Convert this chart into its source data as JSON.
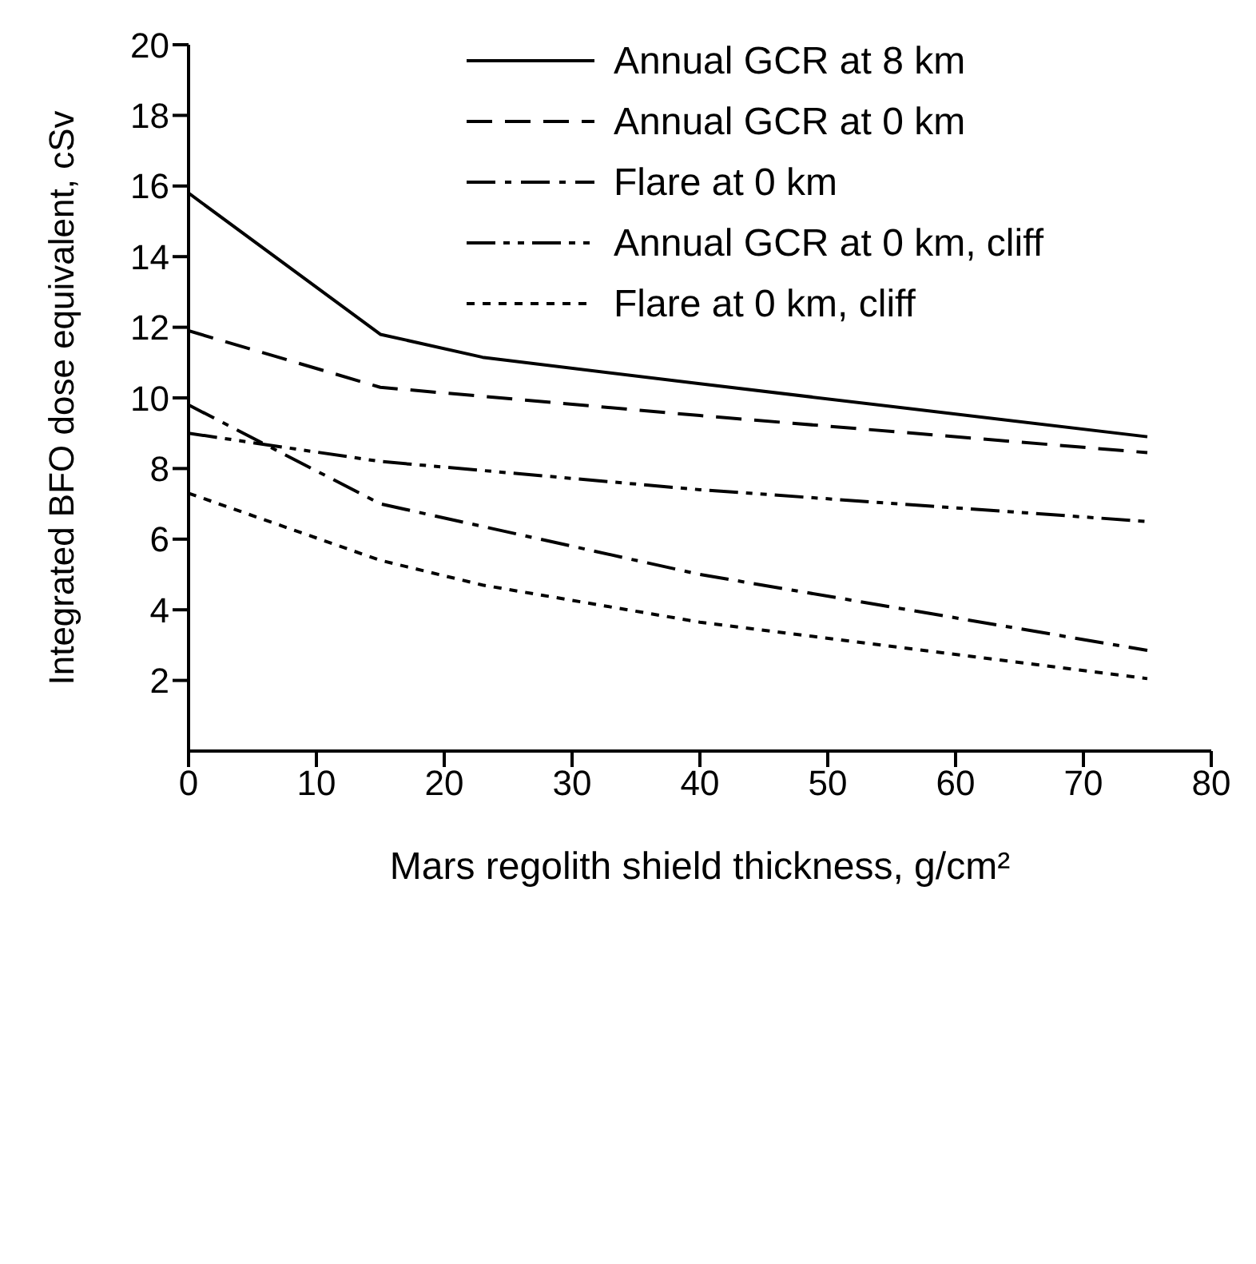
{
  "chart_data": {
    "type": "line",
    "xlabel": "Mars regolith shield thickness, g/cm²",
    "ylabel": "Integrated BFO  dose equivalent, cSv",
    "xlim": [
      0,
      80
    ],
    "xticks": [
      0,
      10,
      20,
      30,
      40,
      50,
      60,
      70,
      80
    ],
    "ylim": [
      0,
      20
    ],
    "yticks": [
      2,
      4,
      6,
      8,
      10,
      12,
      14,
      16,
      18,
      20
    ],
    "grid": false,
    "legend": "top right",
    "marker": "none",
    "series": [
      {
        "name": "Annual GCR at 8 km",
        "color": "#000000",
        "line_style": "solid",
        "x": [
          0,
          15,
          23,
          40,
          75
        ],
        "values": [
          15.8,
          11.8,
          11.15,
          10.4,
          8.9
        ]
      },
      {
        "name": "Annual GCR at 0 km",
        "color": "#000000",
        "line_style": "dashed",
        "x": [
          0,
          15,
          40,
          75
        ],
        "values": [
          11.9,
          10.3,
          9.5,
          8.45
        ]
      },
      {
        "name": "Flare at 0 km",
        "color": "#000000",
        "line_style": "dashdot",
        "x": [
          0,
          15,
          40,
          75
        ],
        "values": [
          9.8,
          7.0,
          5.0,
          2.85
        ]
      },
      {
        "name": "Annual GCR at 0 km, cliff",
        "color": "#000000",
        "line_style": "dashdotdot",
        "x": [
          0,
          15,
          40,
          75
        ],
        "values": [
          9.0,
          8.2,
          7.4,
          6.5
        ]
      },
      {
        "name": "Flare at 0 km, cliff",
        "color": "#000000",
        "line_style": "dotted",
        "x": [
          0,
          15,
          23,
          40,
          75
        ],
        "values": [
          7.3,
          5.4,
          4.7,
          3.65,
          2.05
        ]
      }
    ]
  }
}
